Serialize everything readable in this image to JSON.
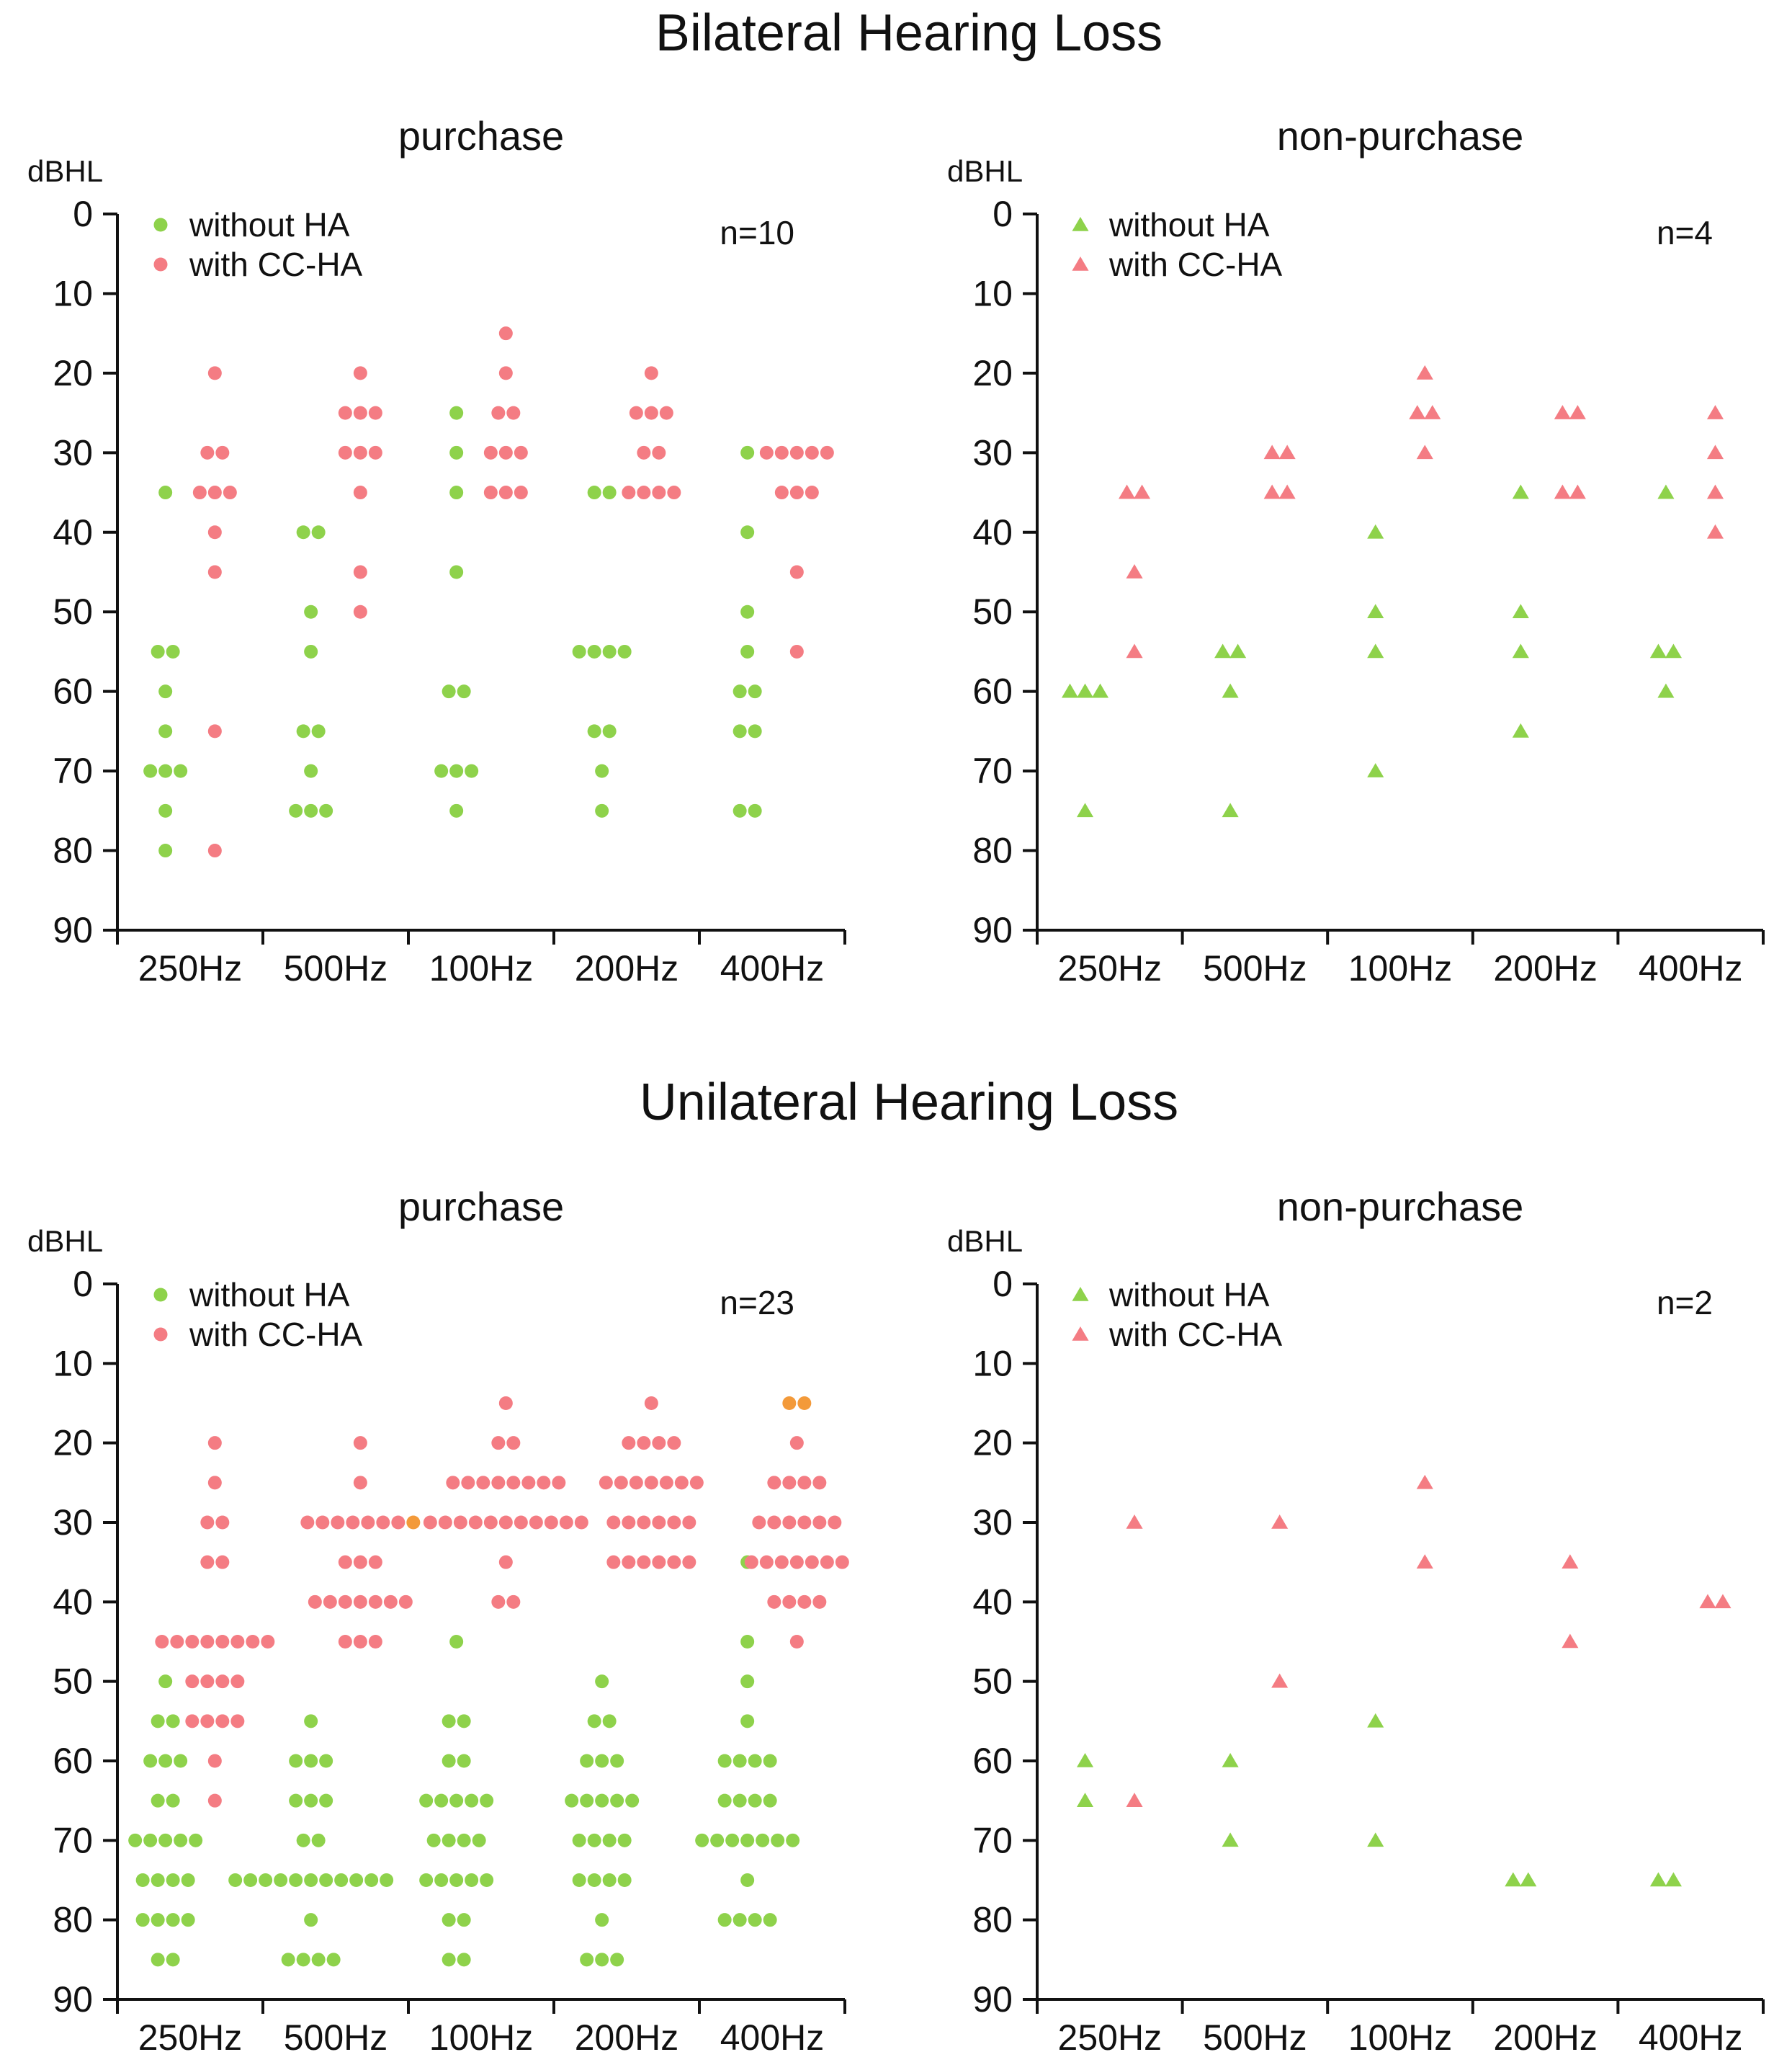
{
  "colors": {
    "without": "#8ED24B",
    "with": "#F47C83",
    "highlight": "#F39A3A",
    "axis": "#111111"
  },
  "sections": [
    {
      "title": "Bilateral Hearing Loss"
    },
    {
      "title": "Unilateral Hearing Loss"
    }
  ],
  "chart_data": [
    {
      "type": "scatter",
      "section": "Bilateral Hearing Loss",
      "title": "purchase",
      "ylabel": "dBHL",
      "ylim": [
        0,
        90
      ],
      "yticks": [
        0,
        10,
        20,
        30,
        40,
        50,
        60,
        70,
        80,
        90
      ],
      "y_inverted": true,
      "categories": [
        "250Hz",
        "500Hz",
        "100Hz",
        "200Hz",
        "400Hz"
      ],
      "n_label": "n=10",
      "marker": "circle",
      "legend": [
        "without HA",
        "with CC-HA"
      ],
      "series": [
        {
          "name": "without HA",
          "color_key": "without",
          "values": [
            [
              35,
              55,
              55,
              60,
              65,
              70,
              70,
              70,
              75,
              80
            ],
            [
              40,
              40,
              50,
              55,
              65,
              65,
              70,
              75,
              75,
              75
            ],
            [
              25,
              30,
              35,
              45,
              60,
              60,
              70,
              70,
              70,
              75
            ],
            [
              35,
              35,
              55,
              55,
              55,
              55,
              65,
              65,
              70,
              75
            ],
            [
              30,
              40,
              50,
              55,
              60,
              60,
              65,
              65,
              75,
              75
            ]
          ]
        },
        {
          "name": "with CC-HA",
          "color_key": "with",
          "values": [
            [
              20,
              30,
              30,
              35,
              35,
              35,
              40,
              45,
              65,
              80
            ],
            [
              20,
              25,
              25,
              25,
              30,
              30,
              30,
              35,
              45,
              50
            ],
            [
              15,
              20,
              25,
              25,
              30,
              30,
              30,
              35,
              35,
              35
            ],
            [
              20,
              25,
              25,
              25,
              30,
              30,
              35,
              35,
              35,
              35
            ],
            [
              30,
              30,
              30,
              30,
              30,
              35,
              35,
              35,
              45,
              55
            ]
          ]
        }
      ]
    },
    {
      "type": "scatter",
      "section": "Bilateral Hearing Loss",
      "title": "non-purchase",
      "ylabel": "dBHL",
      "ylim": [
        0,
        90
      ],
      "yticks": [
        0,
        10,
        20,
        30,
        40,
        50,
        60,
        70,
        80,
        90
      ],
      "y_inverted": true,
      "categories": [
        "250Hz",
        "500Hz",
        "100Hz",
        "200Hz",
        "400Hz"
      ],
      "n_label": "n=4",
      "marker": "triangle",
      "legend": [
        "without HA",
        "with CC-HA"
      ],
      "series": [
        {
          "name": "without HA",
          "color_key": "without",
          "values": [
            [
              60,
              60,
              60,
              75
            ],
            [
              55,
              55,
              60,
              75
            ],
            [
              40,
              50,
              55,
              70
            ],
            [
              35,
              50,
              55,
              65
            ],
            [
              35,
              55,
              55,
              60
            ]
          ]
        },
        {
          "name": "with CC-HA",
          "color_key": "with",
          "values": [
            [
              35,
              35,
              45,
              55
            ],
            [
              30,
              30,
              35,
              35
            ],
            [
              20,
              25,
              25,
              30
            ],
            [
              25,
              25,
              35,
              35
            ],
            [
              25,
              30,
              35,
              40
            ]
          ]
        }
      ]
    },
    {
      "type": "scatter",
      "section": "Unilateral Hearing Loss",
      "title": "purchase",
      "ylabel": "dBHL",
      "ylim": [
        0,
        90
      ],
      "yticks": [
        0,
        10,
        20,
        30,
        40,
        50,
        60,
        70,
        80,
        90
      ],
      "y_inverted": true,
      "categories": [
        "250Hz",
        "500Hz",
        "100Hz",
        "200Hz",
        "400Hz"
      ],
      "n_label": "n=23",
      "marker": "circle",
      "legend": [
        "without HA",
        "with CC-HA"
      ],
      "series": [
        {
          "name": "without HA",
          "color_key": "without",
          "values": [
            [
              50,
              55,
              55,
              60,
              60,
              60,
              65,
              65,
              70,
              70,
              70,
              70,
              70,
              75,
              75,
              75,
              75,
              80,
              80,
              80,
              80,
              85,
              85
            ],
            [
              55,
              60,
              60,
              60,
              65,
              65,
              65,
              70,
              70,
              75,
              75,
              75,
              75,
              75,
              75,
              75,
              75,
              75,
              75,
              75,
              80,
              85,
              85,
              85,
              85
            ],
            [
              45,
              55,
              55,
              60,
              60,
              65,
              65,
              65,
              65,
              65,
              70,
              70,
              70,
              70,
              75,
              75,
              75,
              75,
              75,
              80,
              80,
              85,
              85
            ],
            [
              50,
              55,
              55,
              60,
              60,
              60,
              65,
              65,
              65,
              65,
              65,
              70,
              70,
              70,
              70,
              75,
              75,
              75,
              75,
              80,
              85,
              85,
              85
            ],
            [
              35,
              45,
              50,
              55,
              60,
              60,
              60,
              60,
              65,
              65,
              65,
              65,
              70,
              70,
              70,
              70,
              70,
              70,
              70,
              75,
              80,
              80,
              80,
              80
            ]
          ]
        },
        {
          "name": "with CC-HA",
          "color_key": "with",
          "values": [
            [
              20,
              25,
              30,
              30,
              35,
              35,
              45,
              45,
              45,
              45,
              45,
              45,
              45,
              45,
              50,
              50,
              50,
              50,
              55,
              55,
              55,
              55,
              60,
              65
            ],
            [
              20,
              25,
              30,
              30,
              30,
              30,
              30,
              30,
              30,
              35,
              35,
              35,
              40,
              40,
              40,
              40,
              40,
              40,
              40,
              45,
              45,
              45
            ],
            [
              15,
              20,
              20,
              25,
              25,
              25,
              25,
              25,
              25,
              25,
              25,
              30,
              30,
              30,
              30,
              30,
              30,
              30,
              30,
              30,
              30,
              30,
              35,
              40,
              40
            ],
            [
              15,
              20,
              20,
              20,
              20,
              25,
              25,
              25,
              25,
              25,
              25,
              25,
              30,
              30,
              30,
              30,
              30,
              30,
              35,
              35,
              35,
              35,
              35,
              35
            ],
            [
              20,
              25,
              25,
              25,
              25,
              30,
              30,
              30,
              30,
              30,
              30,
              35,
              35,
              35,
              35,
              35,
              35,
              35,
              40,
              40,
              40,
              40,
              45
            ]
          ]
        },
        {
          "name": "overlap",
          "color_key": "highlight",
          "values": [
            [],
            [
              30
            ],
            [],
            [],
            [
              15,
              15
            ]
          ]
        }
      ]
    },
    {
      "type": "scatter",
      "section": "Unilateral Hearing Loss",
      "title": "non-purchase",
      "ylabel": "dBHL",
      "ylim": [
        0,
        90
      ],
      "yticks": [
        0,
        10,
        20,
        30,
        40,
        50,
        60,
        70,
        80,
        90
      ],
      "y_inverted": true,
      "categories": [
        "250Hz",
        "500Hz",
        "100Hz",
        "200Hz",
        "400Hz"
      ],
      "n_label": "n=2",
      "marker": "triangle",
      "legend": [
        "without HA",
        "with CC-HA"
      ],
      "series": [
        {
          "name": "without HA",
          "color_key": "without",
          "values": [
            [
              60,
              65
            ],
            [
              60,
              70
            ],
            [
              55,
              70
            ],
            [
              75,
              75
            ],
            [
              75,
              75
            ]
          ]
        },
        {
          "name": "with CC-HA",
          "color_key": "with",
          "values": [
            [
              30,
              65
            ],
            [
              30,
              50
            ],
            [
              25,
              35
            ],
            [
              35,
              45
            ],
            [
              40,
              40
            ]
          ]
        }
      ]
    }
  ]
}
